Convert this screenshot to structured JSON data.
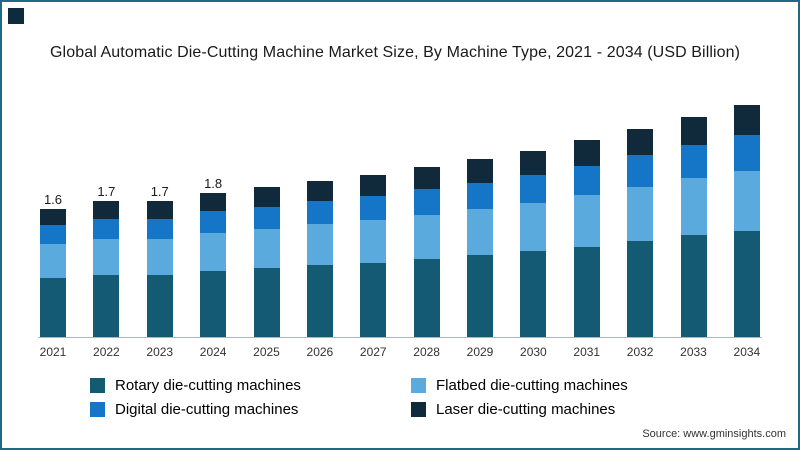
{
  "page": {
    "border_color": "#1d6a84",
    "corner_color": "#0e2a3f",
    "background": "#ffffff",
    "axis_color": "#aeb6bd"
  },
  "source": "Source: www.gminsights.com",
  "chart_data": {
    "type": "bar",
    "stacked": true,
    "title": "Global Automatic Die-Cutting Machine Market Size, By Machine Type, 2021 - 2034 (USD Billion)",
    "xlabel": "",
    "ylabel": "USD Billion",
    "grid": false,
    "legend_position": "bottom",
    "ylim": [
      0,
      3
    ],
    "categories": [
      "2021",
      "2022",
      "2023",
      "2024",
      "2025",
      "2026",
      "2027",
      "2028",
      "2029",
      "2030",
      "2031",
      "2032",
      "2033",
      "2034"
    ],
    "series": [
      {
        "id": "rotary",
        "name": "Rotary die-cutting machines",
        "color": "#135a72",
        "values": [
          0.74,
          0.78,
          0.78,
          0.83,
          0.86,
          0.9,
          0.93,
          0.98,
          1.02,
          1.07,
          1.13,
          1.2,
          1.27,
          1.33
        ]
      },
      {
        "id": "flatbed",
        "name": "Flatbed die-cutting machines",
        "color": "#5aaade",
        "values": [
          0.42,
          0.44,
          0.44,
          0.47,
          0.49,
          0.51,
          0.53,
          0.55,
          0.58,
          0.61,
          0.64,
          0.68,
          0.72,
          0.75
        ]
      },
      {
        "id": "digital",
        "name": "Digital die-cutting machines",
        "color": "#1576c8",
        "values": [
          0.24,
          0.26,
          0.26,
          0.27,
          0.28,
          0.29,
          0.3,
          0.32,
          0.33,
          0.35,
          0.37,
          0.39,
          0.41,
          0.44
        ]
      },
      {
        "id": "laser",
        "name": "Laser die-cutting machines",
        "color": "#102a3c",
        "values": [
          0.2,
          0.22,
          0.22,
          0.23,
          0.24,
          0.25,
          0.26,
          0.27,
          0.29,
          0.3,
          0.32,
          0.33,
          0.35,
          0.38
        ]
      }
    ],
    "totals": [
      1.6,
      1.7,
      1.7,
      1.8,
      1.87,
      1.95,
      2.02,
      2.12,
      2.22,
      2.33,
      2.46,
      2.6,
      2.75,
      2.9
    ],
    "data_labels": [
      "1.6",
      "1.7",
      "1.7",
      "1.8",
      "",
      "",
      "",
      "",
      "",
      "",
      "",
      "",
      "",
      ""
    ]
  }
}
